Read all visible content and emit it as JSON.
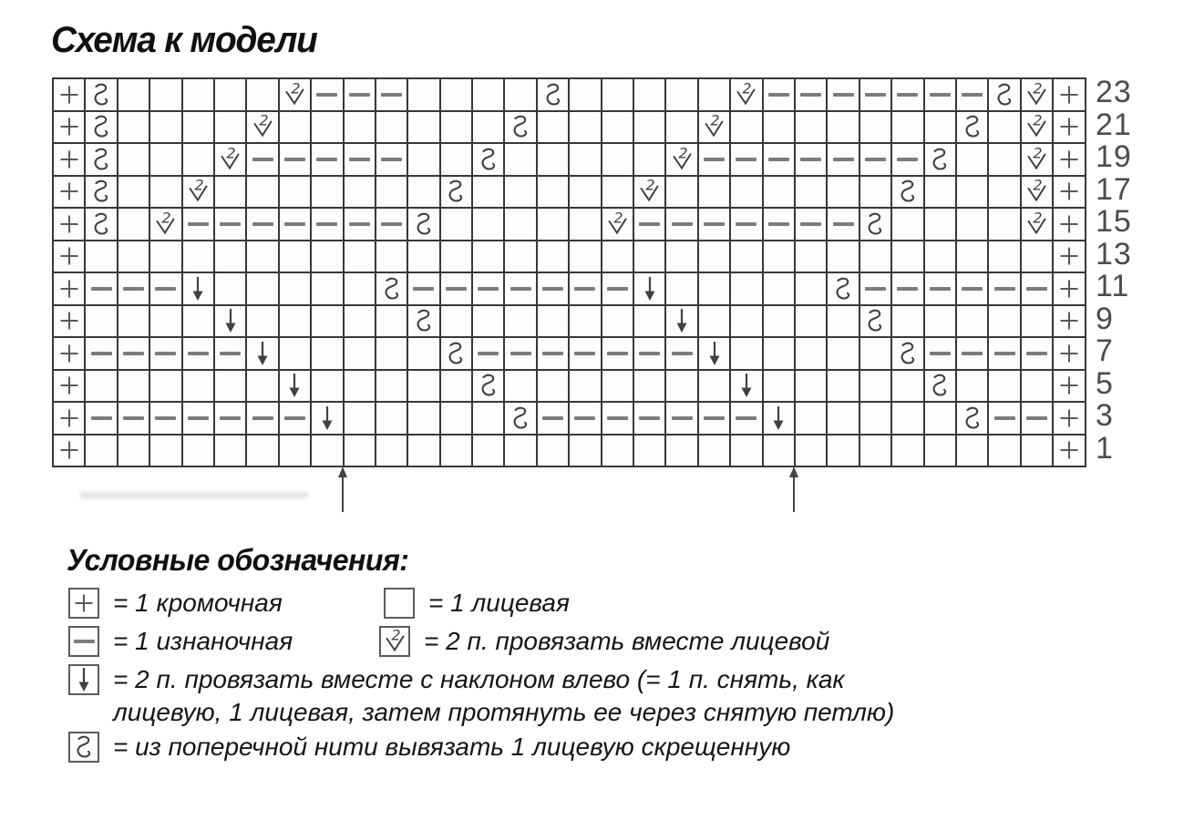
{
  "title": "Схема к модели",
  "chart": {
    "columns": 32,
    "rows": [
      {
        "label": "23",
        "cells": "pmeeeeekdddeeeemeeeeekdddddddmkp"
      },
      {
        "label": "21",
        "cells": "pmeeeekeeeeeeemeeeeekeeeeeeemekp"
      },
      {
        "label": "19",
        "cells": "pmeeekdddddeemeeeeekdddddddmeekp"
      },
      {
        "label": "17",
        "cells": "pmeekeeeeeeemeeeeekeeeeeeemeeekp"
      },
      {
        "label": "15",
        "cells": "pmekdddddddmeeeeekdddddddmeeeekp"
      },
      {
        "label": "13",
        "cells": "peeeeeeeeeeeeeeeeeeeeeeeeeeeeeep"
      },
      {
        "label": "11",
        "cells": "pdddseeeeemdddddddseeeeemddddddp"
      },
      {
        "label": "9",
        "cells": "peeeeseeeeemeeeeeeeseeeeemeeeeep"
      },
      {
        "label": "7",
        "cells": "pdddddseeeeemdddddddseeeeemddddp"
      },
      {
        "label": "5",
        "cells": "peeeeeeseeeeemeeeeeeeseeeeemeeep"
      },
      {
        "label": "3",
        "cells": "pdddddddseeeeemdddddddseeeeemddp"
      },
      {
        "label": "1",
        "cells": "peeeeeeeeeeeeeeeeeeeeeeeeeeeeeep"
      }
    ],
    "symbol_codes": {
      "p": "edge-stitch-plus",
      "e": "knit-empty",
      "d": "purl-dash",
      "k": "k2tog-2-check",
      "s": "ssk-down-arrow",
      "m": "m1-twisted-loop"
    },
    "repeat_marker_after_columns": [
      9,
      23
    ]
  },
  "legend": {
    "heading": "Условные обозначения:",
    "items": [
      {
        "symbol": "p",
        "text": "= 1 кромочная"
      },
      {
        "symbol": "e",
        "text": "= 1 лицевая"
      },
      {
        "symbol": "d",
        "text": "= 1 изнаночная"
      },
      {
        "symbol": "k",
        "text": "= 2 п. провязать вместе лицевой"
      },
      {
        "symbol": "s",
        "text": "= 2 п. провязать вместе с наклоном влево (= 1 п. снять, как",
        "text2": "лицевую, 1 лицевая, затем протянуть ее через снятую петлю)"
      },
      {
        "symbol": "m",
        "text": "= из поперечной нити вывязать 1 лицевую скрещенную"
      }
    ]
  },
  "colors": {
    "background": "#ffffff",
    "grid_line": "#383838",
    "symbol": "#414141",
    "plus": "#5a5a5a",
    "purl_dash": "#7c7c7c",
    "row_number": "#4d4d4d",
    "text": "#161616"
  }
}
